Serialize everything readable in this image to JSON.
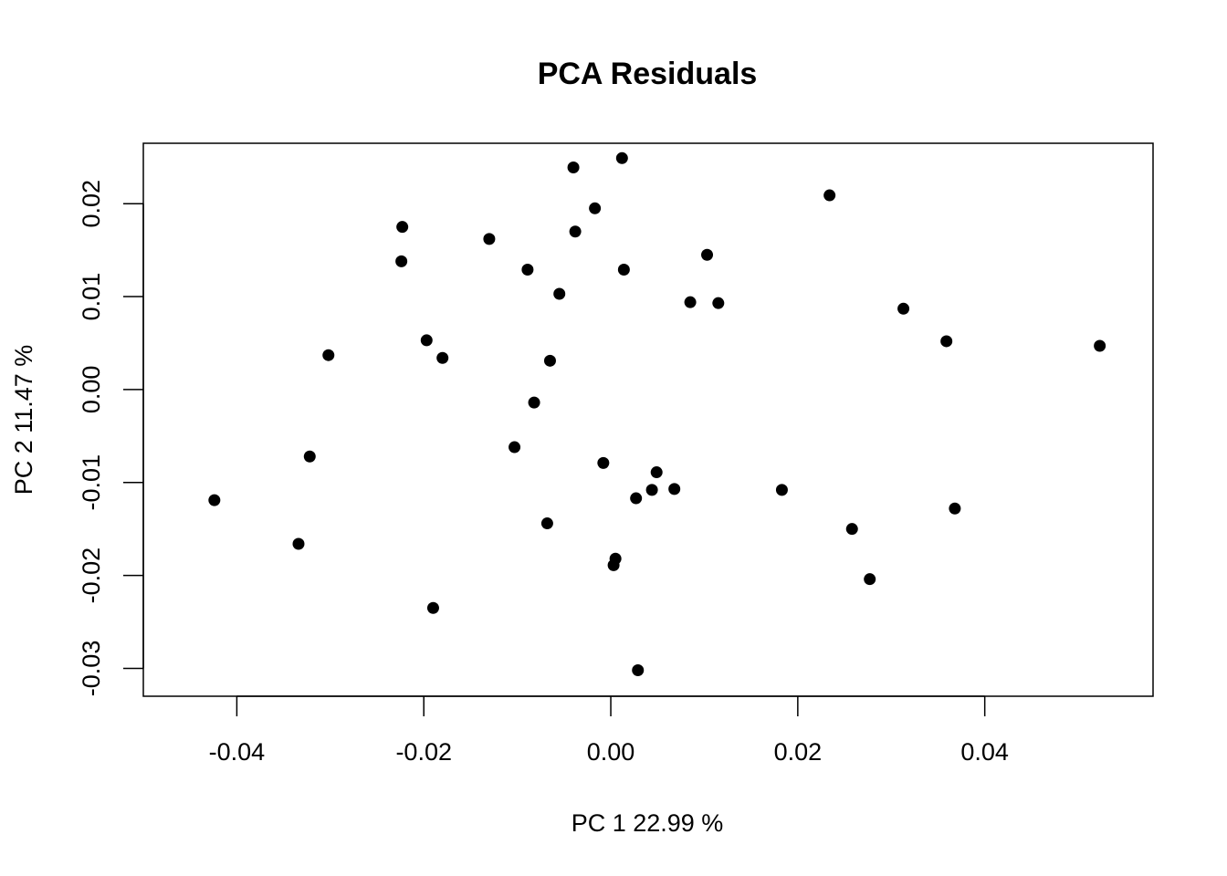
{
  "chart_data": {
    "type": "scatter",
    "title": "PCA Residuals",
    "xlabel": "PC 1 22.99 %",
    "ylabel": "PC 2 11.47 %",
    "xlim": [
      -0.05,
      0.058
    ],
    "ylim": [
      -0.033,
      0.0265
    ],
    "x_ticks": [
      -0.04,
      -0.02,
      0.0,
      0.02,
      0.04
    ],
    "x_tick_labels": [
      "-0.04",
      "-0.02",
      "0.00",
      "0.02",
      "0.04"
    ],
    "y_ticks": [
      -0.03,
      -0.02,
      -0.01,
      0.0,
      0.01,
      0.02
    ],
    "y_tick_labels": [
      "-0.03",
      "-0.02",
      "-0.01",
      "0.00",
      "0.01",
      "0.02"
    ],
    "grid": false,
    "point_color": "#000000",
    "points": [
      {
        "x": 0.0012,
        "y": 0.0249
      },
      {
        "x": -0.004,
        "y": 0.0239
      },
      {
        "x": 0.0234,
        "y": 0.0209
      },
      {
        "x": -0.0017,
        "y": 0.0195
      },
      {
        "x": -0.0223,
        "y": 0.0175
      },
      {
        "x": -0.0038,
        "y": 0.017
      },
      {
        "x": -0.013,
        "y": 0.0162
      },
      {
        "x": 0.0103,
        "y": 0.0145
      },
      {
        "x": -0.0224,
        "y": 0.0138
      },
      {
        "x": -0.0089,
        "y": 0.0129
      },
      {
        "x": 0.0014,
        "y": 0.0129
      },
      {
        "x": -0.0055,
        "y": 0.0103
      },
      {
        "x": 0.0085,
        "y": 0.0094
      },
      {
        "x": 0.0115,
        "y": 0.0093
      },
      {
        "x": 0.0313,
        "y": 0.0087
      },
      {
        "x": -0.0197,
        "y": 0.0053
      },
      {
        "x": 0.0359,
        "y": 0.0052
      },
      {
        "x": 0.0523,
        "y": 0.0047
      },
      {
        "x": -0.0302,
        "y": 0.0037
      },
      {
        "x": -0.018,
        "y": 0.0034
      },
      {
        "x": -0.0065,
        "y": 0.0031
      },
      {
        "x": -0.0082,
        "y": -0.0014
      },
      {
        "x": -0.0103,
        "y": -0.0062
      },
      {
        "x": -0.0322,
        "y": -0.0072
      },
      {
        "x": -0.0008,
        "y": -0.0079
      },
      {
        "x": 0.0049,
        "y": -0.0089
      },
      {
        "x": 0.0068,
        "y": -0.0107
      },
      {
        "x": 0.0044,
        "y": -0.0108
      },
      {
        "x": 0.0183,
        "y": -0.0108
      },
      {
        "x": 0.0027,
        "y": -0.0117
      },
      {
        "x": -0.0424,
        "y": -0.0119
      },
      {
        "x": 0.0368,
        "y": -0.0128
      },
      {
        "x": -0.0068,
        "y": -0.0144
      },
      {
        "x": 0.0258,
        "y": -0.015
      },
      {
        "x": -0.0334,
        "y": -0.0166
      },
      {
        "x": 0.0005,
        "y": -0.0182
      },
      {
        "x": 0.0003,
        "y": -0.0189
      },
      {
        "x": 0.0277,
        "y": -0.0204
      },
      {
        "x": -0.019,
        "y": -0.0235
      },
      {
        "x": 0.0029,
        "y": -0.0302
      }
    ]
  }
}
